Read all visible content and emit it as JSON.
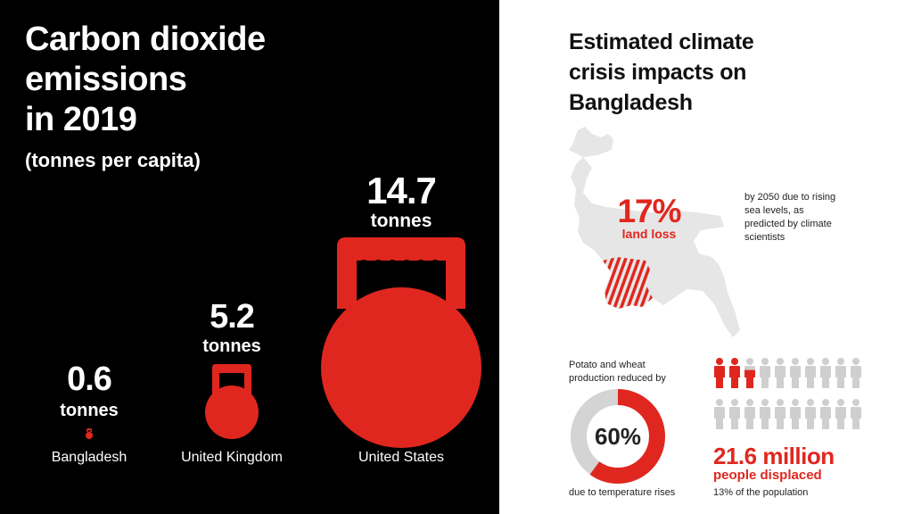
{
  "emissions": {
    "title_lines": [
      "Carbon dioxide",
      "emissions",
      "in 2019"
    ],
    "subtitle": "(tonnes per capita)",
    "items": [
      {
        "country": "Bangladesh",
        "value": "0.6",
        "unit": "tonnes",
        "tonnes_per_capita": 0.6
      },
      {
        "country": "United Kingdom",
        "value": "5.2",
        "unit": "tonnes",
        "tonnes_per_capita": 5.2
      },
      {
        "country": "United States",
        "value": "14.7",
        "unit": "tonnes",
        "tonnes_per_capita": 14.7
      }
    ]
  },
  "impacts": {
    "title_lines": [
      "Estimated climate",
      "crisis impacts on",
      "Bangladesh"
    ],
    "land_loss": {
      "value": "17%",
      "label": "land loss",
      "note": "by 2050 due to rising sea levels, as predicted by climate scientists",
      "fraction": 0.17
    },
    "crops": {
      "note_top": "Potato and wheat production reduced by",
      "value": "60%",
      "note_bottom": "due to temperature rises",
      "fraction": 0.6
    },
    "displaced": {
      "value": "21.6 million",
      "label": "people displaced",
      "note": "13% of the population",
      "fraction": 0.13
    }
  },
  "colors": {
    "accent": "#e0271f",
    "grey": "#d4d4d4",
    "map_grey": "#e6e6e6",
    "left_bg": "#000000"
  },
  "icons": [
    "kettlebell-icon",
    "bangladesh-map-icon",
    "donut-chart",
    "person-icon"
  ]
}
